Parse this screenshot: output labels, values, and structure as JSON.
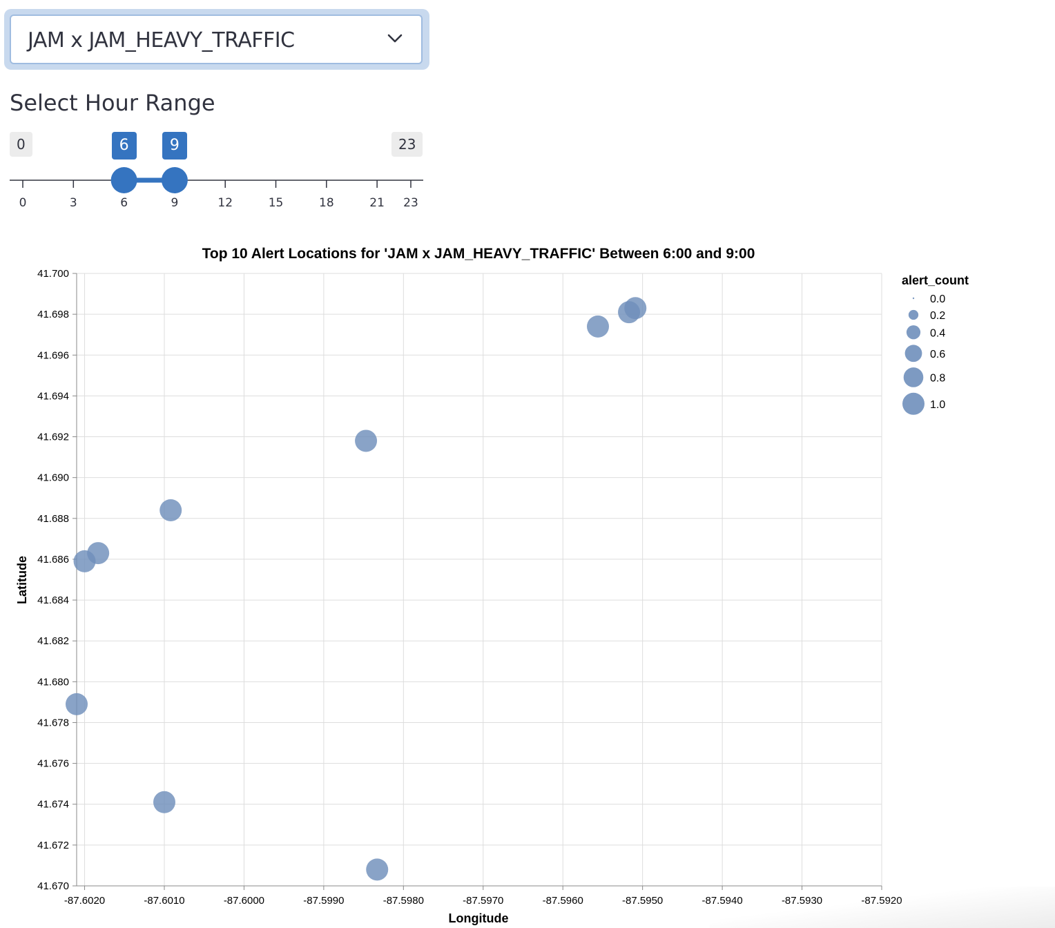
{
  "dropdown": {
    "selected": "JAM x JAM_HEAVY_TRAFFIC"
  },
  "slider": {
    "label": "Select Hour Range",
    "min": 0,
    "max": 23,
    "low": 6,
    "high": 9,
    "ticks": [
      0,
      3,
      6,
      9,
      12,
      15,
      18,
      21,
      23
    ],
    "accent": "#3574c0"
  },
  "chart_data": {
    "type": "scatter",
    "title": "Top 10 Alert Locations for 'JAM x JAM_HEAVY_TRAFFIC' Between 6:00 and 9:00",
    "xlabel": "Longitude",
    "ylabel": "Latitude",
    "xlim": [
      -87.6021,
      -87.592
    ],
    "ylim": [
      41.67,
      41.7
    ],
    "x_ticks": [
      -87.602,
      -87.601,
      -87.6,
      -87.599,
      -87.598,
      -87.597,
      -87.596,
      -87.595,
      -87.594,
      -87.593,
      -87.592
    ],
    "x_tick_labels": [
      "-87.6020",
      "-87.6010",
      "-87.6000",
      "-87.5990",
      "-87.5980",
      "-87.5970",
      "-87.5960",
      "-87.5950",
      "-87.5940",
      "-87.5930",
      "-87.5920"
    ],
    "y_ticks": [
      41.7,
      41.698,
      41.696,
      41.694,
      41.692,
      41.69,
      41.688,
      41.686,
      41.684,
      41.682,
      41.68,
      41.678,
      41.676,
      41.674,
      41.672,
      41.67
    ],
    "y_tick_labels": [
      "41.700",
      "41.698",
      "41.696",
      "41.694",
      "41.692",
      "41.690",
      "41.688",
      "41.686",
      "41.684",
      "41.682",
      "41.680",
      "41.678",
      "41.676",
      "41.674",
      "41.672",
      "41.670"
    ],
    "grid": true,
    "points": [
      {
        "x": -87.602,
        "y": 41.6859,
        "alert_count": 1.0
      },
      {
        "x": -87.60183,
        "y": 41.6863,
        "alert_count": 1.0
      },
      {
        "x": -87.60092,
        "y": 41.6884,
        "alert_count": 1.0
      },
      {
        "x": -87.59847,
        "y": 41.6918,
        "alert_count": 1.0
      },
      {
        "x": -87.59556,
        "y": 41.6974,
        "alert_count": 1.0
      },
      {
        "x": -87.59517,
        "y": 41.6981,
        "alert_count": 1.0
      },
      {
        "x": -87.59509,
        "y": 41.6983,
        "alert_count": 1.0
      },
      {
        "x": -87.6021,
        "y": 41.6789,
        "alert_count": 1.0
      },
      {
        "x": -87.601,
        "y": 41.6741,
        "alert_count": 1.0
      },
      {
        "x": -87.59833,
        "y": 41.6708,
        "alert_count": 1.0
      }
    ],
    "size_legend": {
      "title": "alert_count",
      "placement": "right",
      "values": [
        0.0,
        0.2,
        0.4,
        0.6,
        0.8,
        1.0
      ],
      "labels": [
        "0.0",
        "0.2",
        "0.4",
        "0.6",
        "0.8",
        "1.0"
      ]
    },
    "point_color": "#6f8fbb"
  }
}
